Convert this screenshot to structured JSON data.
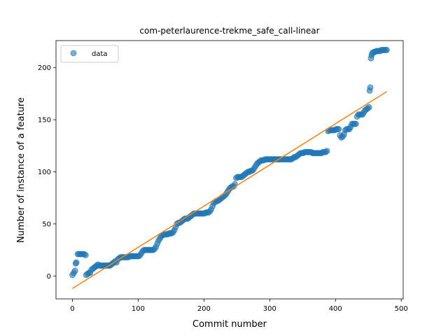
{
  "chart_data": {
    "type": "scatter",
    "title": "com-peterlaurence-trekme_safe_call-linear",
    "xlabel": "Commit number",
    "ylabel": "Number of instance of a feature",
    "xlim": [
      -25,
      503
    ],
    "ylim": [
      -22,
      226
    ],
    "xticks": [
      0,
      100,
      200,
      300,
      400,
      500
    ],
    "yticks": [
      0,
      50,
      100,
      150,
      200
    ],
    "legend_position": "top-left",
    "colors": {
      "data": "#1f77b4",
      "fit": "#ff7f0e"
    },
    "series": [
      {
        "name": "data",
        "kind": "scatter",
        "points": [
          [
            0,
            1
          ],
          [
            2,
            3
          ],
          [
            4,
            5
          ],
          [
            5,
            12
          ],
          [
            6,
            13
          ],
          [
            8,
            21
          ],
          [
            10,
            21
          ],
          [
            12,
            21
          ],
          [
            14,
            21
          ],
          [
            16,
            21
          ],
          [
            18,
            21
          ],
          [
            20,
            20
          ],
          [
            21,
            1
          ],
          [
            23,
            2
          ],
          [
            25,
            3
          ],
          [
            27,
            3
          ],
          [
            29,
            6
          ],
          [
            31,
            7
          ],
          [
            33,
            8
          ],
          [
            35,
            9
          ],
          [
            37,
            10
          ],
          [
            39,
            11
          ],
          [
            41,
            10
          ],
          [
            43,
            10
          ],
          [
            45,
            10
          ],
          [
            47,
            10
          ],
          [
            49,
            10
          ],
          [
            51,
            10
          ],
          [
            53,
            10
          ],
          [
            55,
            10
          ],
          [
            57,
            10
          ],
          [
            59,
            11
          ],
          [
            61,
            12
          ],
          [
            63,
            13
          ],
          [
            65,
            14
          ],
          [
            67,
            13
          ],
          [
            69,
            16
          ],
          [
            71,
            17
          ],
          [
            73,
            18
          ],
          [
            75,
            18
          ],
          [
            77,
            18
          ],
          [
            79,
            18
          ],
          [
            81,
            18
          ],
          [
            83,
            18
          ],
          [
            85,
            18
          ],
          [
            87,
            19
          ],
          [
            89,
            19
          ],
          [
            91,
            19
          ],
          [
            93,
            19
          ],
          [
            95,
            19
          ],
          [
            97,
            19
          ],
          [
            99,
            19
          ],
          [
            101,
            19
          ],
          [
            103,
            20
          ],
          [
            105,
            22
          ],
          [
            107,
            24
          ],
          [
            109,
            25
          ],
          [
            111,
            25
          ],
          [
            113,
            25
          ],
          [
            115,
            25
          ],
          [
            117,
            25
          ],
          [
            119,
            25
          ],
          [
            121,
            25
          ],
          [
            123,
            25
          ],
          [
            125,
            26
          ],
          [
            127,
            28
          ],
          [
            129,
            31
          ],
          [
            131,
            34
          ],
          [
            133,
            36
          ],
          [
            135,
            38
          ],
          [
            137,
            39
          ],
          [
            139,
            40
          ],
          [
            141,
            40
          ],
          [
            143,
            40
          ],
          [
            145,
            40
          ],
          [
            147,
            41
          ],
          [
            149,
            41
          ],
          [
            151,
            41
          ],
          [
            153,
            42
          ],
          [
            155,
            44
          ],
          [
            157,
            47
          ],
          [
            159,
            50
          ],
          [
            161,
            51
          ],
          [
            163,
            51
          ],
          [
            165,
            52
          ],
          [
            167,
            53
          ],
          [
            169,
            54
          ],
          [
            171,
            55
          ],
          [
            173,
            55
          ],
          [
            175,
            55
          ],
          [
            177,
            56
          ],
          [
            179,
            57
          ],
          [
            181,
            58
          ],
          [
            183,
            59
          ],
          [
            185,
            60
          ],
          [
            187,
            60
          ],
          [
            189,
            60
          ],
          [
            191,
            60
          ],
          [
            193,
            60
          ],
          [
            195,
            60
          ],
          [
            197,
            60
          ],
          [
            199,
            60
          ],
          [
            201,
            60
          ],
          [
            203,
            61
          ],
          [
            205,
            61
          ],
          [
            207,
            61
          ],
          [
            209,
            62
          ],
          [
            211,
            64
          ],
          [
            213,
            67
          ],
          [
            215,
            70
          ],
          [
            217,
            71
          ],
          [
            219,
            72
          ],
          [
            221,
            72
          ],
          [
            223,
            73
          ],
          [
            225,
            74
          ],
          [
            227,
            75
          ],
          [
            229,
            76
          ],
          [
            231,
            77
          ],
          [
            233,
            78
          ],
          [
            235,
            80
          ],
          [
            237,
            82
          ],
          [
            239,
            84
          ],
          [
            241,
            85
          ],
          [
            243,
            86
          ],
          [
            245,
            86
          ],
          [
            247,
            88
          ],
          [
            249,
            94
          ],
          [
            251,
            95
          ],
          [
            253,
            95
          ],
          [
            255,
            95
          ],
          [
            257,
            95
          ],
          [
            259,
            96
          ],
          [
            261,
            97
          ],
          [
            263,
            98
          ],
          [
            265,
            99
          ],
          [
            267,
            100
          ],
          [
            269,
            100
          ],
          [
            271,
            101
          ],
          [
            273,
            101
          ],
          [
            275,
            102
          ],
          [
            277,
            104
          ],
          [
            279,
            106
          ],
          [
            281,
            108
          ],
          [
            283,
            109
          ],
          [
            285,
            110
          ],
          [
            287,
            111
          ],
          [
            289,
            111
          ],
          [
            291,
            111
          ],
          [
            293,
            112
          ],
          [
            295,
            112
          ],
          [
            297,
            112
          ],
          [
            299,
            112
          ],
          [
            301,
            112
          ],
          [
            303,
            112
          ],
          [
            305,
            112
          ],
          [
            307,
            112
          ],
          [
            309,
            112
          ],
          [
            311,
            112
          ],
          [
            313,
            112
          ],
          [
            315,
            112
          ],
          [
            317,
            112
          ],
          [
            319,
            112
          ],
          [
            321,
            112
          ],
          [
            323,
            112
          ],
          [
            325,
            112
          ],
          [
            327,
            112
          ],
          [
            329,
            112
          ],
          [
            331,
            112
          ],
          [
            333,
            112
          ],
          [
            335,
            113
          ],
          [
            337,
            114
          ],
          [
            339,
            114
          ],
          [
            341,
            115
          ],
          [
            343,
            116
          ],
          [
            345,
            117
          ],
          [
            347,
            118
          ],
          [
            349,
            118
          ],
          [
            351,
            118
          ],
          [
            353,
            119
          ],
          [
            355,
            119
          ],
          [
            357,
            119
          ],
          [
            359,
            119
          ],
          [
            361,
            119
          ],
          [
            363,
            119
          ],
          [
            365,
            118
          ],
          [
            367,
            118
          ],
          [
            369,
            118
          ],
          [
            371,
            118
          ],
          [
            373,
            118
          ],
          [
            375,
            118
          ],
          [
            377,
            118
          ],
          [
            379,
            118
          ],
          [
            381,
            119
          ],
          [
            383,
            119
          ],
          [
            385,
            119
          ],
          [
            387,
            120
          ],
          [
            389,
            139
          ],
          [
            391,
            140
          ],
          [
            393,
            140
          ],
          [
            395,
            140
          ],
          [
            397,
            140
          ],
          [
            399,
            140
          ],
          [
            401,
            141
          ],
          [
            403,
            141
          ],
          [
            405,
            141
          ],
          [
            407,
            135
          ],
          [
            409,
            133
          ],
          [
            411,
            134
          ],
          [
            413,
            136
          ],
          [
            415,
            140
          ],
          [
            417,
            141
          ],
          [
            419,
            141
          ],
          [
            421,
            141
          ],
          [
            423,
            143
          ],
          [
            425,
            146
          ],
          [
            427,
            146
          ],
          [
            429,
            146
          ],
          [
            431,
            146
          ],
          [
            433,
            153
          ],
          [
            435,
            155
          ],
          [
            437,
            155
          ],
          [
            439,
            155
          ],
          [
            441,
            155
          ],
          [
            443,
            157
          ],
          [
            445,
            159
          ],
          [
            447,
            160
          ],
          [
            449,
            161
          ],
          [
            451,
            162
          ],
          [
            452,
            178
          ],
          [
            453,
            181
          ],
          [
            454,
            209
          ],
          [
            455,
            212
          ],
          [
            456,
            214
          ],
          [
            458,
            215
          ],
          [
            460,
            215
          ],
          [
            462,
            216
          ],
          [
            464,
            216
          ],
          [
            466,
            216
          ],
          [
            468,
            216
          ],
          [
            470,
            217
          ],
          [
            472,
            217
          ],
          [
            474,
            217
          ],
          [
            476,
            217
          ],
          [
            478,
            217
          ]
        ]
      },
      {
        "name": "fit",
        "kind": "line",
        "points": [
          [
            0,
            -12
          ],
          [
            478,
            177
          ]
        ]
      }
    ]
  }
}
